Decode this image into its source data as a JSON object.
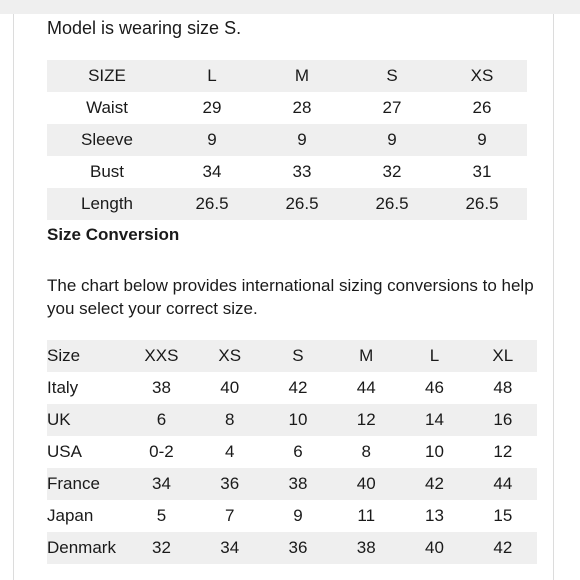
{
  "caption": "Model is wearing size S.",
  "size_table": {
    "header": [
      "SIZE",
      "L",
      "M",
      "S",
      "XS"
    ],
    "rows": [
      [
        "Waist",
        "29",
        "28",
        "27",
        "26"
      ],
      [
        "Sleeve",
        "9",
        "9",
        "9",
        "9"
      ],
      [
        "Bust",
        "34",
        "33",
        "32",
        "31"
      ],
      [
        "Length",
        "26.5",
        "26.5",
        "26.5",
        "26.5"
      ]
    ]
  },
  "conversion": {
    "heading": "Size Conversion",
    "description": "The chart below provides international sizing conversions to help you select your correct size.",
    "header": [
      "Size",
      "XXS",
      "XS",
      "S",
      "M",
      "L",
      "XL"
    ],
    "rows": [
      [
        "Italy",
        "38",
        "40",
        "42",
        "44",
        "46",
        "48"
      ],
      [
        "UK",
        "6",
        "8",
        "10",
        "12",
        "14",
        "16"
      ],
      [
        "USA",
        "0-2",
        "4",
        "6",
        "8",
        "10",
        "12"
      ],
      [
        "France",
        "34",
        "36",
        "38",
        "40",
        "42",
        "44"
      ],
      [
        "Japan",
        "5",
        "7",
        "9",
        "11",
        "13",
        "15"
      ],
      [
        "Denmark",
        "32",
        "34",
        "36",
        "38",
        "40",
        "42"
      ]
    ]
  },
  "colors": {
    "row_shade": "#efefef",
    "text": "#1a1a1a"
  }
}
